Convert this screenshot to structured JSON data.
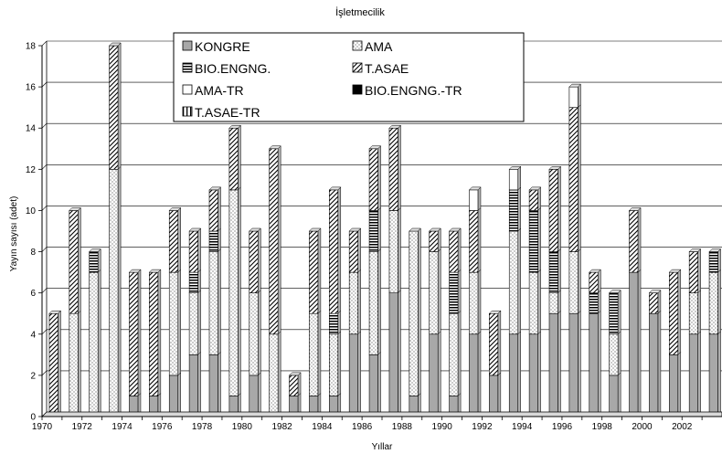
{
  "chart_data": {
    "type": "bar",
    "stacked": true,
    "title": "İşletmecilik",
    "xlabel": "Yıllar",
    "ylabel": "Yayın sayısı (adet)",
    "ylim": [
      0,
      18
    ],
    "yticks": [
      0,
      2,
      4,
      6,
      8,
      10,
      12,
      14,
      16,
      18
    ],
    "grid": true,
    "legend_position": "top-center",
    "categories": [
      "1970",
      "1971",
      "1972",
      "1973",
      "1974",
      "1975",
      "1976",
      "1977",
      "1978",
      "1979",
      "1980",
      "1981",
      "1982",
      "1983",
      "1984",
      "1985",
      "1986",
      "1987",
      "1988",
      "1989",
      "1990",
      "1991",
      "1992",
      "1993",
      "1994",
      "1995",
      "1996",
      "1997",
      "1998",
      "1999",
      "2000",
      "2001",
      "2002",
      "2003"
    ],
    "xtick_labels": [
      "1970",
      "1972",
      "1974",
      "1976",
      "1978",
      "1980",
      "1982",
      "1984",
      "1986",
      "1988",
      "1990",
      "1992",
      "1994",
      "1996",
      "1998",
      "2000",
      "2002"
    ],
    "series": [
      {
        "name": "KONGRE",
        "pattern": "gray",
        "values": [
          0,
          0,
          0,
          0,
          1,
          1,
          2,
          3,
          3,
          1,
          2,
          0,
          1,
          1,
          1,
          4,
          3,
          6,
          1,
          4,
          1,
          4,
          2,
          4,
          4,
          5,
          5,
          5,
          2,
          7,
          5,
          3,
          4,
          4
        ]
      },
      {
        "name": "AMA",
        "pattern": "dots",
        "values": [
          0,
          5,
          7,
          12,
          0,
          0,
          5,
          3,
          5,
          10,
          4,
          4,
          0,
          4,
          3,
          3,
          5,
          4,
          8,
          4,
          4,
          3,
          0,
          5,
          3,
          1,
          3,
          0,
          2,
          0,
          0,
          0,
          2,
          3
        ]
      },
      {
        "name": "BIO.ENGNG.",
        "pattern": "hlines",
        "values": [
          0,
          0,
          1,
          0,
          0,
          0,
          0,
          1,
          1,
          0,
          0,
          0,
          0,
          0,
          1,
          0,
          2,
          0,
          0,
          0,
          2,
          0,
          0,
          2,
          3,
          2,
          0,
          1,
          2,
          0,
          0,
          0,
          0,
          1
        ]
      },
      {
        "name": "T.ASAE",
        "pattern": "diag",
        "values": [
          5,
          5,
          0,
          6,
          6,
          6,
          3,
          2,
          2,
          3,
          3,
          9,
          1,
          4,
          6,
          2,
          3,
          4,
          0,
          1,
          2,
          3,
          3,
          0,
          1,
          4,
          7,
          1,
          0,
          3,
          1,
          4,
          2,
          0
        ]
      },
      {
        "name": "AMA-TR",
        "pattern": "white",
        "values": [
          0,
          0,
          0,
          0,
          0,
          0,
          0,
          0,
          0,
          0,
          0,
          0,
          0,
          0,
          0,
          0,
          0,
          0,
          0,
          0,
          0,
          1,
          0,
          1,
          0,
          0,
          1,
          0,
          0,
          0,
          0,
          0,
          0,
          0
        ]
      },
      {
        "name": "BIO.ENGNG.-TR",
        "pattern": "black",
        "values": [
          0,
          0,
          0,
          0,
          0,
          0,
          0,
          0,
          0,
          0,
          0,
          0,
          0,
          0,
          0,
          0,
          0,
          0,
          0,
          0,
          0,
          0,
          0,
          0,
          0,
          0,
          0,
          0,
          0,
          0,
          0,
          0,
          0,
          0
        ]
      },
      {
        "name": "T.ASAE-TR",
        "pattern": "vlines",
        "values": [
          0,
          0,
          0,
          0,
          0,
          0,
          0,
          0,
          0,
          0,
          0,
          0,
          0,
          0,
          0,
          0,
          0,
          0,
          0,
          0,
          0,
          0,
          0,
          0,
          0,
          0,
          0,
          0,
          0,
          0,
          0,
          0,
          0,
          0
        ]
      }
    ]
  }
}
